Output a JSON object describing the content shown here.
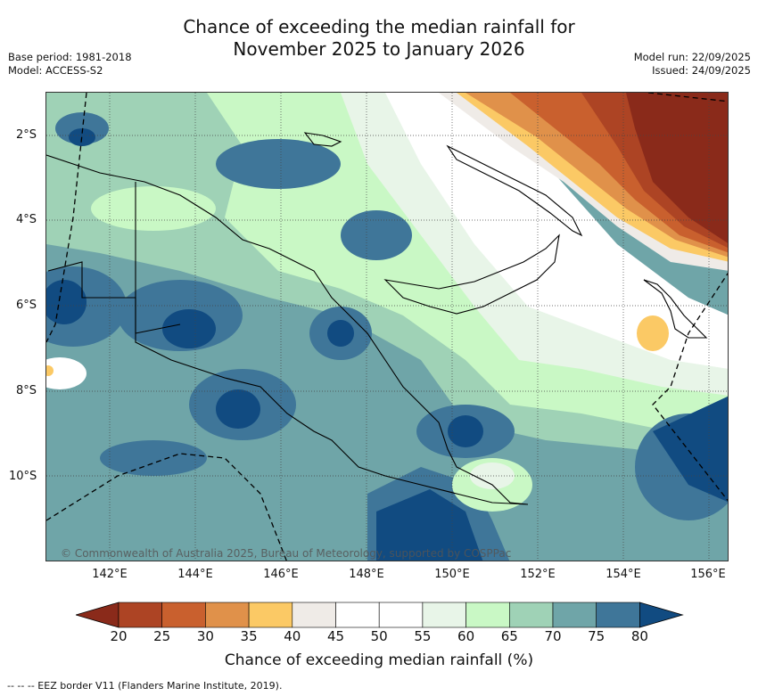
{
  "title_line1": "Chance of exceeding the median rainfall for",
  "title_line2": "November 2025 to January 2026",
  "base_period": "Base period: 1981-2018",
  "model": "Model: ACCESS-S2",
  "model_run": "Model run: 22/09/2025",
  "issued": "Issued: 24/09/2025",
  "latitudes": [
    "2°S",
    "4°S",
    "6°S",
    "8°S",
    "10°S"
  ],
  "longitudes": [
    "142°E",
    "144°E",
    "146°E",
    "148°E",
    "150°E",
    "152°E",
    "154°E",
    "156°E"
  ],
  "copyright": "© Commonwealth of Australia 2025, Bureau of Meteorology, supported by COSPPac",
  "colorbar": {
    "label": "Chance of exceeding median rainfall (%)",
    "ticks": [
      "20",
      "25",
      "30",
      "35",
      "40",
      "45",
      "50",
      "55",
      "60",
      "65",
      "70",
      "75",
      "80"
    ],
    "colors": [
      "#8a2a1a",
      "#ad4424",
      "#c9602e",
      "#e0914a",
      "#fbc965",
      "#efebe7",
      "#ffffff",
      "#ffffff",
      "#e8f5e8",
      "#c9f8c5",
      "#9fd2b6",
      "#6fa5a8",
      "#3f7699",
      "#114b81"
    ]
  },
  "footnote": "-- -- -- EEZ border V11 (Flanders Marine Institute, 2019)."
}
